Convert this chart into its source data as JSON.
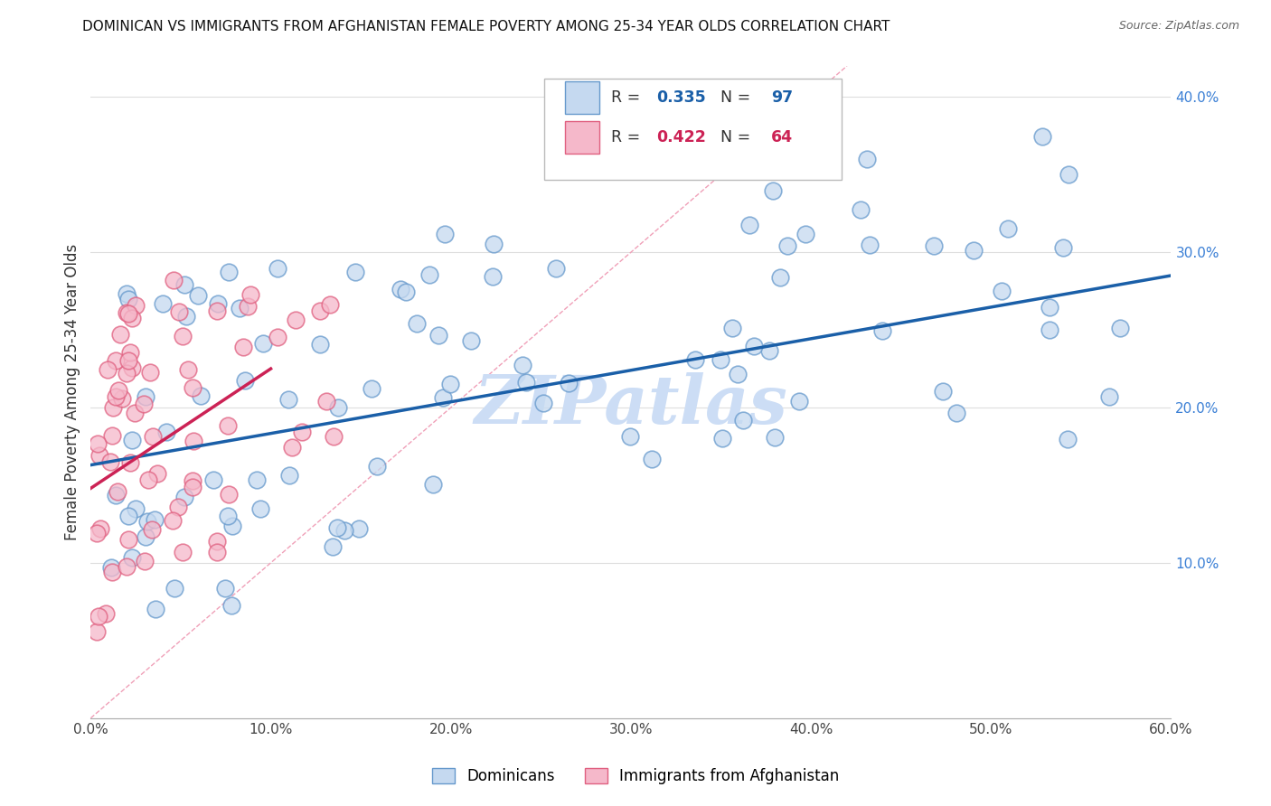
{
  "title": "DOMINICAN VS IMMIGRANTS FROM AFGHANISTAN FEMALE POVERTY AMONG 25-34 YEAR OLDS CORRELATION CHART",
  "source": "Source: ZipAtlas.com",
  "ylabel": "Female Poverty Among 25-34 Year Olds",
  "xlim": [
    0.0,
    0.6
  ],
  "ylim": [
    0.0,
    0.42
  ],
  "xtick_vals": [
    0.0,
    0.1,
    0.2,
    0.3,
    0.4,
    0.5,
    0.6
  ],
  "ytick_vals": [
    0.0,
    0.1,
    0.2,
    0.3,
    0.4
  ],
  "blue_R": 0.335,
  "blue_N": 97,
  "pink_R": 0.422,
  "pink_N": 64,
  "blue_label": "Dominicans",
  "pink_label": "Immigrants from Afghanistan",
  "blue_face": "#c5d9f0",
  "blue_edge": "#6699cc",
  "pink_face": "#f5b8ca",
  "pink_edge": "#e06080",
  "blue_line_color": "#1a5fa8",
  "pink_line_color": "#cc2255",
  "diag_color": "#f0a0b8",
  "diag_style": "--",
  "watermark": "ZIPatlas",
  "watermark_color": "#ccddf5",
  "blue_trend_x0": 0.0,
  "blue_trend_y0": 0.163,
  "blue_trend_x1": 0.6,
  "blue_trend_y1": 0.285,
  "pink_trend_x0": 0.0,
  "pink_trend_y0": 0.148,
  "pink_trend_x1": 0.1,
  "pink_trend_y1": 0.225,
  "title_fontsize": 11,
  "source_fontsize": 9,
  "scatter_size": 180,
  "scatter_alpha": 0.75,
  "grid_color": "#dddddd",
  "spine_color": "#aaaaaa"
}
